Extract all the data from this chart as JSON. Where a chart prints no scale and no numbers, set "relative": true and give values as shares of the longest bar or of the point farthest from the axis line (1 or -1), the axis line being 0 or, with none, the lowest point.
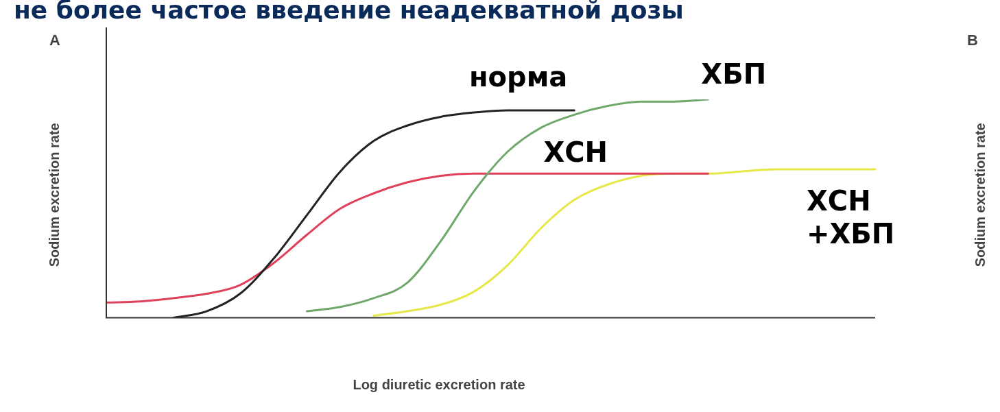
{
  "chart_data": {
    "type": "line",
    "relative": true,
    "title": "не более частое введение неадекватной дозы",
    "xlabel": "Log diuretic excretion rate",
    "ylabel": "Sodium excretion rate",
    "annotations": [
      "A",
      "B",
      "Sodium excretion rate"
    ],
    "legend": false,
    "marker": "none",
    "grid": false,
    "categories": [
      null,
      null,
      null,
      null,
      null,
      null,
      null,
      null,
      null,
      null,
      null,
      null,
      null,
      null,
      null,
      null,
      null,
      null,
      null,
      null,
      null,
      null,
      null,
      null
    ],
    "series": [
      {
        "name": "норма",
        "color": "#222222",
        "values": [
          null,
          null,
          0,
          0.03,
          0.11,
          0.27,
          0.47,
          0.67,
          0.81,
          0.88,
          0.92,
          0.94,
          0.95,
          0.95,
          0.95,
          null,
          null,
          null,
          null,
          null,
          null,
          null,
          null,
          null
        ]
      },
      {
        "name": "ХБП",
        "color": "#6fa86a",
        "values": [
          null,
          null,
          null,
          null,
          null,
          null,
          0.03,
          0.05,
          0.09,
          0.16,
          0.35,
          0.58,
          0.76,
          0.87,
          0.93,
          0.97,
          0.99,
          0.99,
          1,
          null,
          null,
          null,
          null,
          null
        ]
      },
      {
        "name": "ХСН",
        "color": "#e0405a",
        "values": [
          0.07,
          0.075,
          0.09,
          0.11,
          0.15,
          0.25,
          0.38,
          0.5,
          0.57,
          0.62,
          0.65,
          0.66,
          0.66,
          0.66,
          0.66,
          0.66,
          0.66,
          0.66,
          0.66,
          null,
          null,
          null,
          null,
          null
        ]
      },
      {
        "name": "ХСН +ХБП",
        "color": "#e6e84a",
        "values": [
          null,
          null,
          null,
          null,
          null,
          null,
          null,
          null,
          0.01,
          0.03,
          0.06,
          0.12,
          0.24,
          0.41,
          0.54,
          0.61,
          0.65,
          0.66,
          0.66,
          0.67,
          0.68,
          0.68,
          0.68,
          0.68
        ]
      }
    ]
  }
}
